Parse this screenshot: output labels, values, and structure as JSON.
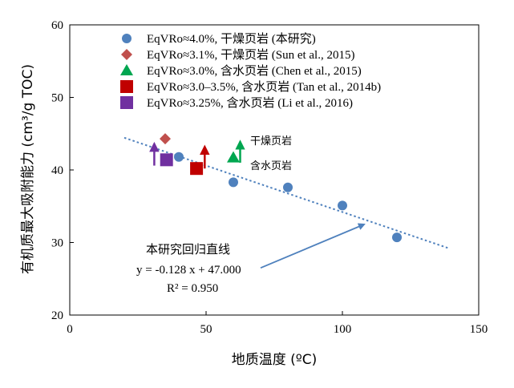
{
  "chart_data": {
    "type": "scatter",
    "xlabel": "地质温度 (ºC)",
    "ylabel": "有机质最大吸附能力 (cm³/g TOC)",
    "xlim": [
      0,
      150
    ],
    "ylim": [
      20,
      60
    ],
    "xticks": [
      "0",
      "50",
      "100",
      "150"
    ],
    "yticks": [
      "20",
      "30",
      "40",
      "50",
      "60"
    ],
    "legend_position": "top-left",
    "series": [
      {
        "name": "EqVRo≈4.0%, 干燥页岩 (本研究)",
        "marker": "circle",
        "color": "#4f81bd",
        "points": [
          [
            40,
            41.8
          ],
          [
            60,
            38.3
          ],
          [
            80,
            37.6
          ],
          [
            100,
            35.1
          ],
          [
            120,
            30.7
          ]
        ]
      },
      {
        "name": "EqVRo≈3.1%, 干燥页岩 (Sun et al., 2015)",
        "marker": "diamond",
        "color": "#c0504d",
        "points": [
          [
            35,
            44.3
          ]
        ]
      },
      {
        "name": "EqVRo≈3.0%, 含水页岩 (Chen et al., 2015)",
        "marker": "triangle",
        "color": "#00a650",
        "points": [
          [
            60,
            41.7
          ]
        ]
      },
      {
        "name": "EqVRo≈3.0–3.5%, 含水页岩 (Tan et al., 2014b)",
        "marker": "square",
        "color": "#c00000",
        "points": [
          [
            46.5,
            40.2
          ]
        ]
      },
      {
        "name": "EqVRo≈3.25%, 含水页岩 (Li et al., 2016)",
        "marker": "square",
        "color": "#7030a0",
        "points": [
          [
            35.5,
            41.4
          ]
        ]
      }
    ],
    "arrows": [
      {
        "color": "#7030a0",
        "x": 31,
        "y_from": 40.6,
        "y_to": 43.6
      },
      {
        "color": "#c00000",
        "x": 49.5,
        "y_from": 40.2,
        "y_to": 43.2
      },
      {
        "color": "#00a650",
        "x": 62.5,
        "y_from": 41.0,
        "y_to": 43.9
      }
    ],
    "fit_line": {
      "slope": -0.128,
      "intercept": 47.0,
      "x_range": [
        20,
        139
      ],
      "color": "#4f81bd"
    },
    "annotations": {
      "dry_label": "干燥页岩",
      "wet_label": "含水页岩",
      "fit_title": "本研究回归直线",
      "fit_equation": "y = -0.128 x + 47.000",
      "fit_r2": "R² = 0.950"
    }
  }
}
